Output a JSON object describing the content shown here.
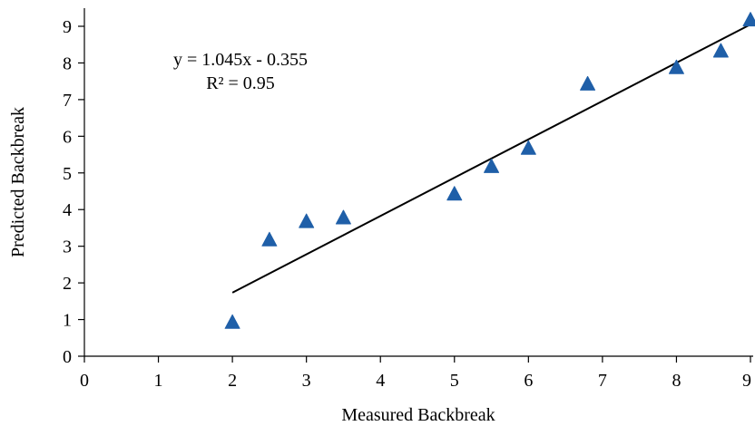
{
  "chart_data": {
    "type": "scatter",
    "xlabel": "Measured Backbreak",
    "ylabel": "Predicted Backbreak",
    "xlim": [
      0,
      9
    ],
    "ylim": [
      0,
      9
    ],
    "x_ticks": [
      "0",
      "1",
      "2",
      "3",
      "4",
      "5",
      "6",
      "7",
      "8",
      "9"
    ],
    "y_ticks": [
      "0",
      "1",
      "2",
      "3",
      "4",
      "5",
      "6",
      "7",
      "8",
      "9"
    ],
    "grid": false,
    "legend": "none",
    "series": [
      {
        "marker": "triangle",
        "color": "#1f5fa8",
        "points": [
          {
            "x": 2.0,
            "y": 0.9
          },
          {
            "x": 2.5,
            "y": 3.15
          },
          {
            "x": 3.0,
            "y": 3.65
          },
          {
            "x": 3.5,
            "y": 3.75
          },
          {
            "x": 5.0,
            "y": 4.4
          },
          {
            "x": 5.5,
            "y": 5.15
          },
          {
            "x": 6.0,
            "y": 5.65
          },
          {
            "x": 6.8,
            "y": 7.4
          },
          {
            "x": 8.0,
            "y": 7.85
          },
          {
            "x": 8.6,
            "y": 8.3
          },
          {
            "x": 9.0,
            "y": 9.15
          }
        ]
      }
    ],
    "trendline": {
      "slope": 1.045,
      "intercept": -0.355,
      "x_range": [
        2,
        9
      ],
      "color": "#000000"
    },
    "annotations": {
      "equation": "y = 1.045x - 0.355",
      "r_squared": "R² = 0.95"
    }
  }
}
